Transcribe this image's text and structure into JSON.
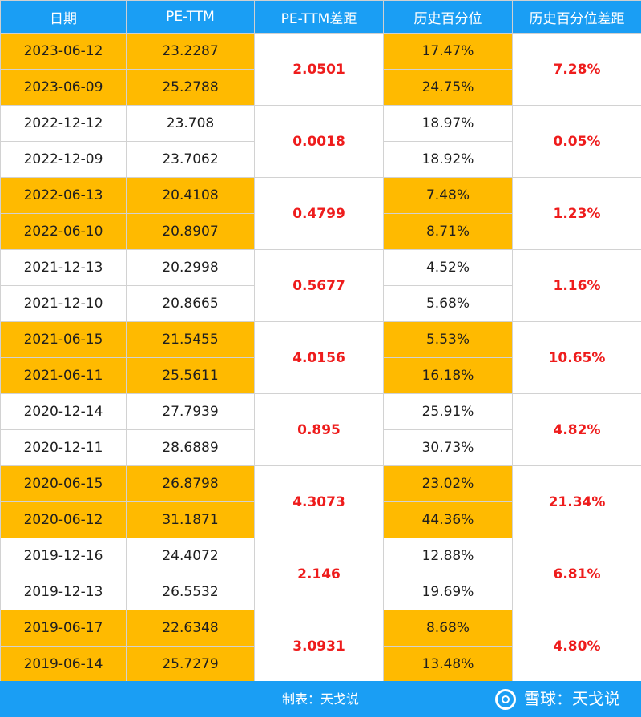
{
  "headers": [
    "日期",
    "PE-TTM",
    "PE-TTM差距",
    "历史百分位",
    "历史百分位差距"
  ],
  "groups": [
    {
      "highlight": true,
      "rows": [
        {
          "date": "2023-06-12",
          "pe": "23.2287",
          "pct": "17.47%"
        },
        {
          "date": "2023-06-09",
          "pe": "25.2788",
          "pct": "24.75%"
        }
      ],
      "pe_diff": "2.0501",
      "pct_diff": "7.28%"
    },
    {
      "highlight": false,
      "rows": [
        {
          "date": "2022-12-12",
          "pe": "23.708",
          "pct": "18.97%"
        },
        {
          "date": "2022-12-09",
          "pe": "23.7062",
          "pct": "18.92%"
        }
      ],
      "pe_diff": "0.0018",
      "pct_diff": "0.05%"
    },
    {
      "highlight": true,
      "rows": [
        {
          "date": "2022-06-13",
          "pe": "20.4108",
          "pct": "7.48%"
        },
        {
          "date": "2022-06-10",
          "pe": "20.8907",
          "pct": "8.71%"
        }
      ],
      "pe_diff": "0.4799",
      "pct_diff": "1.23%"
    },
    {
      "highlight": false,
      "rows": [
        {
          "date": "2021-12-13",
          "pe": "20.2998",
          "pct": "4.52%"
        },
        {
          "date": "2021-12-10",
          "pe": "20.8665",
          "pct": "5.68%"
        }
      ],
      "pe_diff": "0.5677",
      "pct_diff": "1.16%"
    },
    {
      "highlight": true,
      "rows": [
        {
          "date": "2021-06-15",
          "pe": "21.5455",
          "pct": "5.53%"
        },
        {
          "date": "2021-06-11",
          "pe": "25.5611",
          "pct": "16.18%"
        }
      ],
      "pe_diff": "4.0156",
      "pct_diff": "10.65%"
    },
    {
      "highlight": false,
      "rows": [
        {
          "date": "2020-12-14",
          "pe": "27.7939",
          "pct": "25.91%"
        },
        {
          "date": "2020-12-11",
          "pe": "28.6889",
          "pct": "30.73%"
        }
      ],
      "pe_diff": "0.895",
      "pct_diff": "4.82%"
    },
    {
      "highlight": true,
      "rows": [
        {
          "date": "2020-06-15",
          "pe": "26.8798",
          "pct": "23.02%"
        },
        {
          "date": "2020-06-12",
          "pe": "31.1871",
          "pct": "44.36%"
        }
      ],
      "pe_diff": "4.3073",
      "pct_diff": "21.34%"
    },
    {
      "highlight": false,
      "rows": [
        {
          "date": "2019-12-16",
          "pe": "24.4072",
          "pct": "12.88%"
        },
        {
          "date": "2019-12-13",
          "pe": "26.5532",
          "pct": "19.69%"
        }
      ],
      "pe_diff": "2.146",
      "pct_diff": "6.81%"
    },
    {
      "highlight": true,
      "rows": [
        {
          "date": "2019-06-17",
          "pe": "22.6348",
          "pct": "8.68%"
        },
        {
          "date": "2019-06-14",
          "pe": "25.7279",
          "pct": "13.48%"
        }
      ],
      "pe_diff": "3.0931",
      "pct_diff": "4.80%"
    }
  ],
  "footer": {
    "maker": "制表：天戈说",
    "watermark": "雪球：天戈说"
  },
  "colors": {
    "header": "#1a9ef4",
    "highlight": "#ffba00",
    "diff_text": "#ee1c1c"
  }
}
